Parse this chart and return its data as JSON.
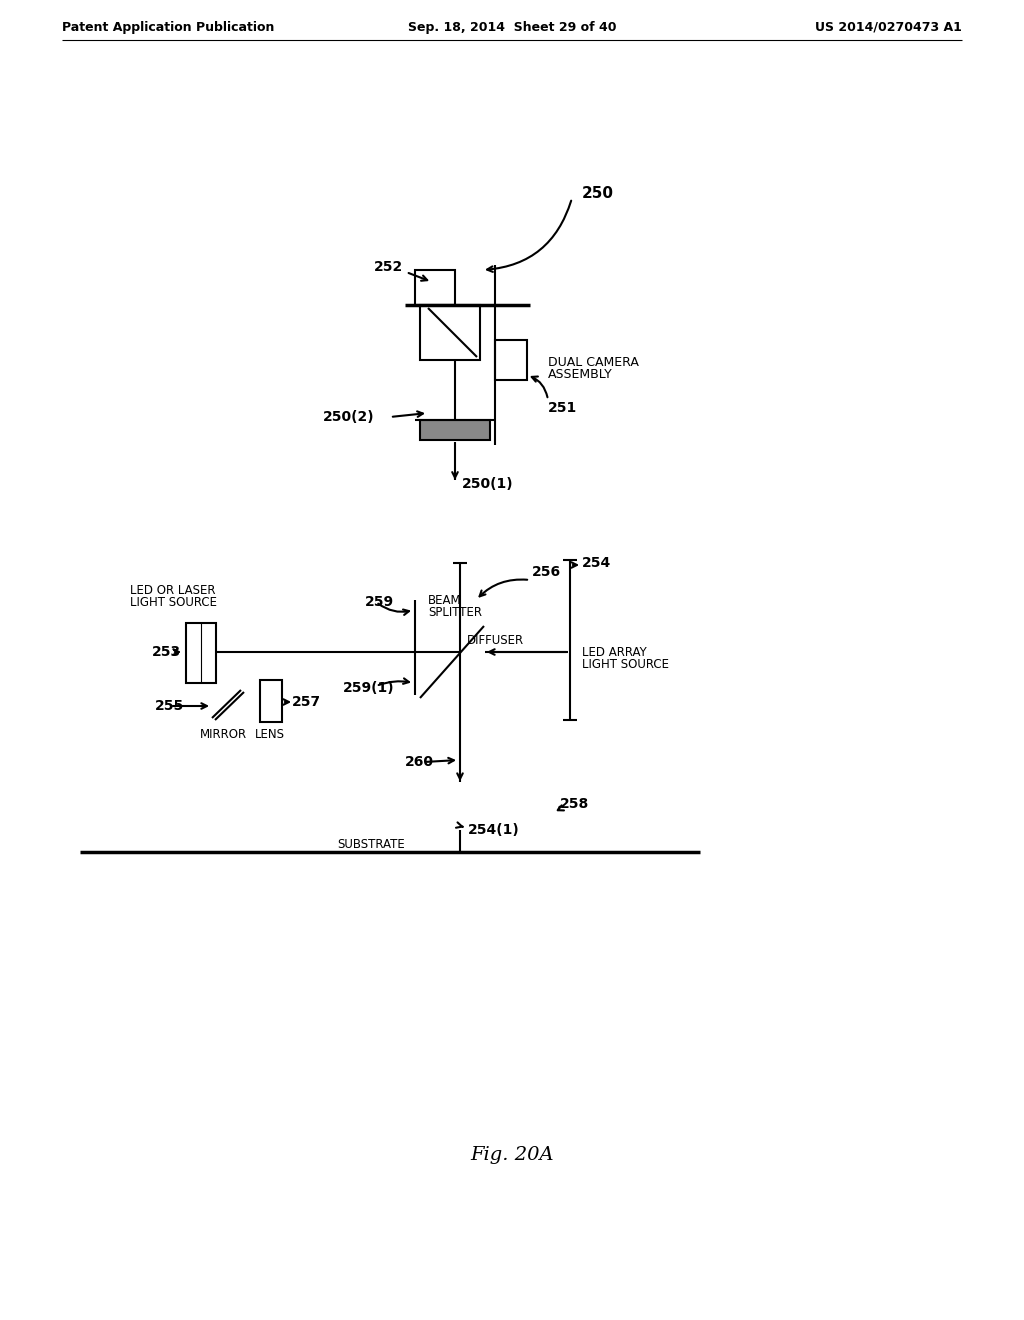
{
  "bg_color": "#ffffff",
  "text_color": "#000000",
  "header_left": "Patent Application Publication",
  "header_mid": "Sep. 18, 2014  Sheet 29 of 40",
  "header_right": "US 2014/0270473 A1",
  "fig_label": "Fig. 20A",
  "line_color": "#000000",
  "lw": 1.5,
  "lw_thick": 2.5
}
